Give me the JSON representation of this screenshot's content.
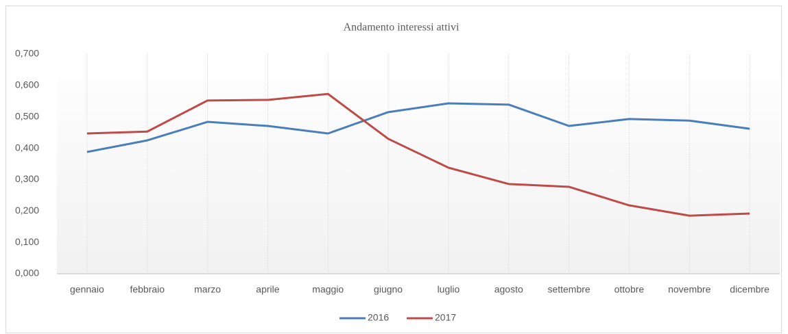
{
  "chart_data": {
    "type": "line",
    "title": "Andamento interessi attivi",
    "categories": [
      "gennaio",
      "febbraio",
      "marzo",
      "aprile",
      "maggio",
      "giugno",
      "luglio",
      "agosto",
      "settembre",
      "ottobre",
      "novembre",
      "dicembre"
    ],
    "series": [
      {
        "name": "2016",
        "color": "#4a7ebb",
        "values": [
          0.388,
          0.425,
          0.484,
          0.471,
          0.447,
          0.515,
          0.543,
          0.539,
          0.471,
          0.493,
          0.488,
          0.462
        ]
      },
      {
        "name": "2017",
        "color": "#be4b48",
        "values": [
          0.447,
          0.453,
          0.552,
          0.554,
          0.573,
          0.43,
          0.338,
          0.286,
          0.277,
          0.218,
          0.185,
          0.192
        ]
      }
    ],
    "ylim": [
      0,
      0.7
    ],
    "yticks": [
      {
        "value": 0,
        "label": "0,000"
      },
      {
        "value": 0.1,
        "label": "0,100"
      },
      {
        "value": 0.2,
        "label": "0,200"
      },
      {
        "value": 0.3,
        "label": "0,300"
      },
      {
        "value": 0.4,
        "label": "0,400"
      },
      {
        "value": 0.5,
        "label": "0,500"
      },
      {
        "value": 0.6,
        "label": "0,600"
      },
      {
        "value": 0.7,
        "label": "0,700"
      }
    ],
    "grid": true,
    "legend": "bottom"
  }
}
